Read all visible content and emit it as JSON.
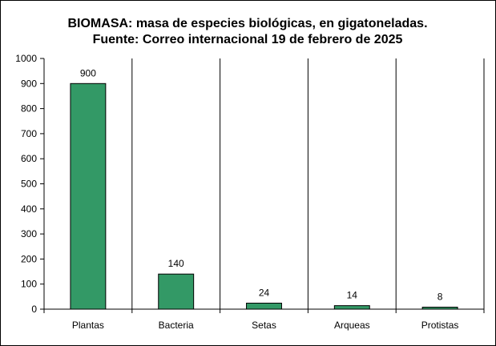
{
  "chart_data": {
    "type": "bar",
    "title": "BIOMASA: masa de especies biológicas, en gigatoneladas.",
    "subtitle": "Fuente: Correo internacional 19 de febrero de 2025",
    "categories": [
      "Plantas",
      "Bacteria",
      "Setas",
      "Arqueas",
      "Protistas"
    ],
    "values": [
      900,
      140,
      24,
      14,
      8
    ],
    "data_labels": [
      "900",
      "140",
      "24",
      "14",
      "8"
    ],
    "ylim": [
      0,
      1000
    ],
    "yticks": [
      0,
      100,
      200,
      300,
      400,
      500,
      600,
      700,
      800,
      900,
      1000
    ],
    "ytick_labels": [
      "0",
      "100",
      "200",
      "300",
      "400",
      "500",
      "600",
      "700",
      "800",
      "900",
      "1000"
    ],
    "xlabel": "",
    "ylabel": "",
    "legend": "none",
    "grid": "vertical category separators",
    "bar_color": "#339966"
  }
}
